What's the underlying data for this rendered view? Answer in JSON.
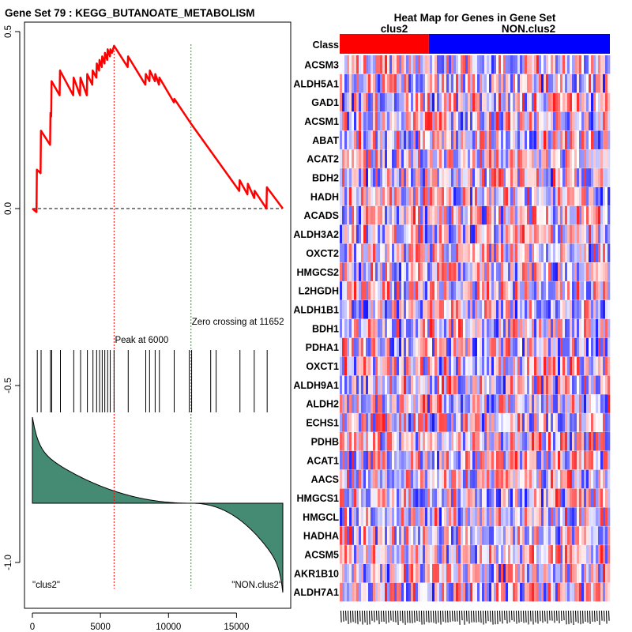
{
  "chart_data": [
    {
      "type": "line",
      "title": "Gene Set  79 : KEGG_BUTANOATE_METABOLISM",
      "xlim": [
        0,
        18500
      ],
      "ylim": [
        -1.05,
        0.52
      ],
      "x_ticks": [
        0,
        5000,
        10000,
        15000
      ],
      "x_tick_labels": [
        "0",
        "5000",
        "10000",
        "15000"
      ],
      "y_ticks": [
        0.5,
        0.0,
        -0.5,
        -1.0
      ],
      "y_tick_labels": [
        "0.5",
        "0.0",
        "-0.5",
        "-1.0"
      ],
      "series": [
        {
          "name": "running enrichment score",
          "color": "#ff0000",
          "x": [
            0,
            300,
            330,
            600,
            630,
            1300,
            1330,
            1380,
            1410,
            2000,
            2030,
            3000,
            3030,
            3500,
            3530,
            4000,
            4030,
            4400,
            4430,
            4700,
            4730,
            4900,
            4930,
            5100,
            5130,
            5300,
            5330,
            5500,
            5530,
            5700,
            5730,
            5850,
            6000,
            7000,
            7030,
            8300,
            8330,
            8600,
            8630,
            9000,
            9030,
            9300,
            9330,
            10400,
            10430,
            11652,
            15200,
            15230,
            15800,
            15830,
            16300,
            16330,
            17200,
            17230,
            18400
          ],
          "y": [
            0,
            -0.01,
            0.11,
            0.1,
            0.22,
            0.18,
            0.27,
            0.26,
            0.36,
            0.32,
            0.39,
            0.32,
            0.37,
            0.32,
            0.37,
            0.32,
            0.38,
            0.35,
            0.39,
            0.37,
            0.41,
            0.39,
            0.42,
            0.4,
            0.43,
            0.41,
            0.44,
            0.42,
            0.45,
            0.43,
            0.45,
            0.44,
            0.46,
            0.4,
            0.43,
            0.35,
            0.38,
            0.36,
            0.39,
            0.36,
            0.38,
            0.35,
            0.37,
            0.3,
            0.31,
            0.24,
            0.05,
            0.08,
            0.04,
            0.07,
            0.03,
            0.05,
            0.0,
            0.06,
            0.0
          ]
        }
      ],
      "hits": [
        360,
        640,
        1330,
        1420,
        2060,
        3040,
        3540,
        4040,
        4450,
        4720,
        4940,
        5130,
        5320,
        5530,
        5720,
        6000,
        7040,
        8330,
        8610,
        9020,
        9330,
        10420,
        11530,
        11700,
        13100,
        13500,
        15250,
        16300,
        17250
      ],
      "peak_x": 6000,
      "zero_crossing_x": 11652,
      "annotations": {
        "peak": "Peak at 6000",
        "zero_crossing": "Zero crossing at 11652",
        "left_class": "\"clus2\"",
        "right_class": "\"NON.clus2\""
      }
    },
    {
      "type": "heatmap",
      "title": "Heat Map for Genes in Gene Set",
      "class_row_label": "Class",
      "classes": [
        {
          "name": "clus2",
          "color": "#ff0000",
          "fraction": 0.33
        },
        {
          "name": "NON.clus2",
          "color": "#0000ff",
          "fraction": 0.67
        }
      ],
      "rows": [
        "ACSM3",
        "ALDH5A1",
        "GAD1",
        "ACSM1",
        "ABAT",
        "ACAT2",
        "BDH2",
        "HADH",
        "ACADS",
        "ALDH3A2",
        "OXCT2",
        "HMGCS2",
        "L2HGDH",
        "ALDH1B1",
        "BDH1",
        "PDHA1",
        "OXCT1",
        "ALDH9A1",
        "ALDH2",
        "ECHS1",
        "PDHB",
        "ACAT1",
        "AACS",
        "HMGCS1",
        "HMGCL",
        "HADHA",
        "ACSM5",
        "AKR1B10",
        "ALDH7A1"
      ],
      "colors": {
        "high": "#ff0000",
        "mid": "#ffffff",
        "low": "#0000ff"
      }
    }
  ]
}
